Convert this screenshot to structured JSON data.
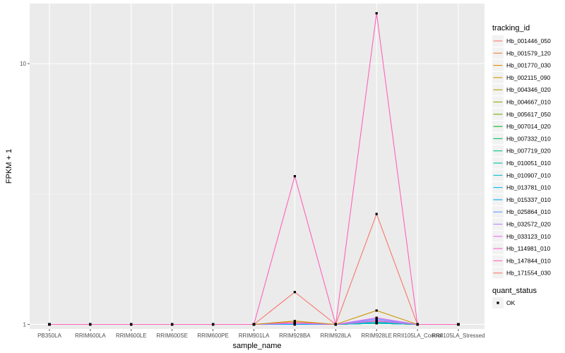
{
  "chart_data": {
    "type": "line",
    "xlabel": "sample_name",
    "ylabel": "FPKM + 1",
    "y_scale": "log10",
    "ylim": [
      0.96,
      17
    ],
    "y_ticks": [
      1,
      10
    ],
    "y_tick_labels": [
      "1",
      "10"
    ],
    "categories": [
      "PB350LA",
      "RRIM600LA",
      "RRIM600LE",
      "RRIM600SE",
      "RRIM600PE",
      "RRIM901LA",
      "RRIM928BA",
      "RRIM928LA",
      "RRIM928LE",
      "RRII105LA_Control",
      "RRII105LA_Stressed"
    ],
    "grid": true,
    "background": "#ebebeb",
    "legend_title": "tracking_id",
    "legend_position": "right",
    "point_legend_title": "quant_status",
    "point_legend_label": "OK",
    "series": [
      {
        "name": "Hb_001446_050",
        "color": "#F8766D",
        "values": [
          1,
          1,
          1,
          1,
          1,
          1,
          1.02,
          1,
          1.02,
          1,
          1
        ]
      },
      {
        "name": "Hb_001579_120",
        "color": "#EE8043",
        "values": [
          1,
          1,
          1,
          1,
          1,
          1,
          1.01,
          1,
          1.01,
          1,
          1
        ]
      },
      {
        "name": "Hb_001770_030",
        "color": "#DF8B00",
        "values": [
          1,
          1,
          1,
          1,
          1,
          1,
          1.01,
          1,
          1.01,
          1,
          1
        ]
      },
      {
        "name": "Hb_002115_090",
        "color": "#CB9600",
        "values": [
          1,
          1,
          1,
          1,
          1,
          1,
          1.03,
          1,
          1.13,
          1,
          1
        ]
      },
      {
        "name": "Hb_004346_020",
        "color": "#B4A000",
        "values": [
          1,
          1,
          1,
          1,
          1,
          1,
          1.01,
          1,
          1.01,
          1,
          1
        ]
      },
      {
        "name": "Hb_004667_010",
        "color": "#97A900",
        "values": [
          1,
          1,
          1,
          1,
          1,
          1,
          1,
          1,
          1.01,
          1,
          1
        ]
      },
      {
        "name": "Hb_005617_050",
        "color": "#6FB000",
        "values": [
          1,
          1,
          1,
          1,
          1,
          1,
          1,
          1,
          1.01,
          1,
          1
        ]
      },
      {
        "name": "Hb_007014_020",
        "color": "#00B81B",
        "values": [
          1,
          1,
          1,
          1,
          1,
          1,
          1,
          1,
          1.01,
          1,
          1
        ]
      },
      {
        "name": "Hb_007332_010",
        "color": "#00BD5C",
        "values": [
          1,
          1,
          1,
          1,
          1,
          1,
          1,
          1,
          1.01,
          1,
          1
        ]
      },
      {
        "name": "Hb_007719_020",
        "color": "#00C086",
        "values": [
          1,
          1,
          1,
          1,
          1,
          1,
          1,
          1,
          1.01,
          1,
          1
        ]
      },
      {
        "name": "Hb_010051_010",
        "color": "#00C1A9",
        "values": [
          1,
          1,
          1,
          1,
          1,
          1,
          1,
          1,
          1.01,
          1,
          1
        ]
      },
      {
        "name": "Hb_010907_010",
        "color": "#00BFC4",
        "values": [
          1,
          1,
          1,
          1,
          1,
          1,
          1,
          1,
          1.01,
          1,
          1
        ]
      },
      {
        "name": "Hb_013781_010",
        "color": "#00B8E3",
        "values": [
          1,
          1,
          1,
          1,
          1,
          1,
          1,
          1,
          1.02,
          1,
          1
        ]
      },
      {
        "name": "Hb_015337_010",
        "color": "#00ACFC",
        "values": [
          1,
          1,
          1,
          1,
          1,
          1,
          1,
          1,
          1.03,
          1,
          1
        ]
      },
      {
        "name": "Hb_025864_010",
        "color": "#619CFF",
        "values": [
          1,
          1,
          1,
          1,
          1,
          1,
          1.01,
          1,
          1.05,
          1,
          1
        ]
      },
      {
        "name": "Hb_032572_020",
        "color": "#B983FF",
        "values": [
          1,
          1,
          1,
          1,
          1,
          1,
          1.01,
          1,
          1.04,
          1,
          1
        ]
      },
      {
        "name": "Hb_033123_010",
        "color": "#E76BF3",
        "values": [
          1,
          1,
          1,
          1,
          1,
          1,
          1.01,
          1,
          1.06,
          1,
          1
        ]
      },
      {
        "name": "Hb_114981_010",
        "color": "#FF61C9",
        "values": [
          1,
          1,
          1,
          1,
          1,
          1,
          1.01,
          1,
          1.03,
          1,
          1
        ]
      },
      {
        "name": "Hb_147844_010",
        "color": "#FF62BC",
        "values": [
          1,
          1,
          1,
          1,
          1,
          1,
          3.7,
          1,
          15.6,
          1,
          1
        ]
      },
      {
        "name": "Hb_171554_030",
        "color": "#F8766D",
        "values": [
          1,
          1,
          1,
          1,
          1,
          1,
          1.33,
          1,
          2.65,
          1,
          1
        ]
      }
    ]
  }
}
